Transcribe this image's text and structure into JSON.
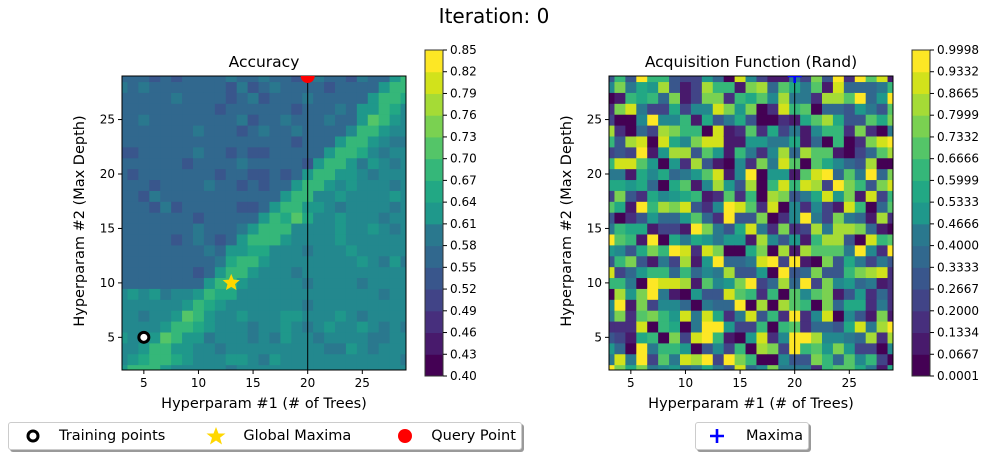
{
  "figure": {
    "suptitle": "Iteration: 0"
  },
  "chart_data": [
    {
      "type": "heatmap",
      "subtype": "filled-contour",
      "title": "Accuracy",
      "xlabel": "Hyperparam #1 (# of Trees)",
      "ylabel": "Hyperparam #2 (Max Depth)",
      "xlim": [
        3,
        29
      ],
      "ylim": [
        2,
        29
      ],
      "xticks": [
        5,
        10,
        15,
        20,
        25
      ],
      "yticks": [
        5,
        10,
        15,
        20,
        25
      ],
      "grid": false,
      "colormap": "viridis",
      "colorbar": {
        "ticks": [
          "0.40",
          "0.43",
          "0.46",
          "0.49",
          "0.52",
          "0.55",
          "0.58",
          "0.61",
          "0.64",
          "0.67",
          "0.70",
          "0.73",
          "0.76",
          "0.79",
          "0.82",
          "0.85"
        ],
        "range": [
          0.4,
          0.85
        ]
      },
      "description": "Mostly 0.55-0.64 background with a higher-accuracy diagonal ridge (~0.67-0.73) running from lower-left to upper-right",
      "ridge": [
        [
          5,
          2
        ],
        [
          29,
          28
        ]
      ],
      "markers": {
        "training_points": [
          {
            "x": 5,
            "y": 5
          }
        ],
        "global_maxima": {
          "x": 13,
          "y": 10
        },
        "query_point": {
          "x": 20,
          "y": 29
        }
      },
      "vline_x": 20,
      "legend": {
        "placement": "bottom-center",
        "entries": [
          {
            "label": "Training points",
            "marker": "ring",
            "color": "#000000"
          },
          {
            "label": "Global Maxima",
            "marker": "star",
            "color": "#ffd700"
          },
          {
            "label": "Query Point",
            "marker": "circle",
            "color": "#ff0000"
          }
        ]
      }
    },
    {
      "type": "heatmap",
      "subtype": "filled-contour",
      "title": "Acquisition Function (Rand)",
      "xlabel": "Hyperparam #1 (# of Trees)",
      "ylabel": "Hyperparam #2 (Max Depth)",
      "xlim": [
        3,
        29
      ],
      "ylim": [
        2,
        29
      ],
      "xticks": [
        5,
        10,
        15,
        20,
        25
      ],
      "yticks": [
        5,
        10,
        15,
        20,
        25
      ],
      "grid": false,
      "colormap": "viridis",
      "colorbar": {
        "ticks": [
          "0.0001",
          "0.0667",
          "0.1334",
          "0.2000",
          "0.2667",
          "0.3333",
          "0.4000",
          "0.4666",
          "0.5333",
          "0.5999",
          "0.6666",
          "0.7332",
          "0.7999",
          "0.8665",
          "0.9332",
          "0.9998"
        ],
        "range": [
          0.0001,
          0.9998
        ]
      },
      "description": "Uniform random noise field over the grid",
      "markers": {
        "maxima": {
          "x": 20,
          "y": 29
        }
      },
      "vline_x": 20,
      "legend": {
        "placement": "bottom-center",
        "entries": [
          {
            "label": "Maxima",
            "marker": "plus",
            "color": "#0000ff"
          }
        ]
      }
    }
  ]
}
